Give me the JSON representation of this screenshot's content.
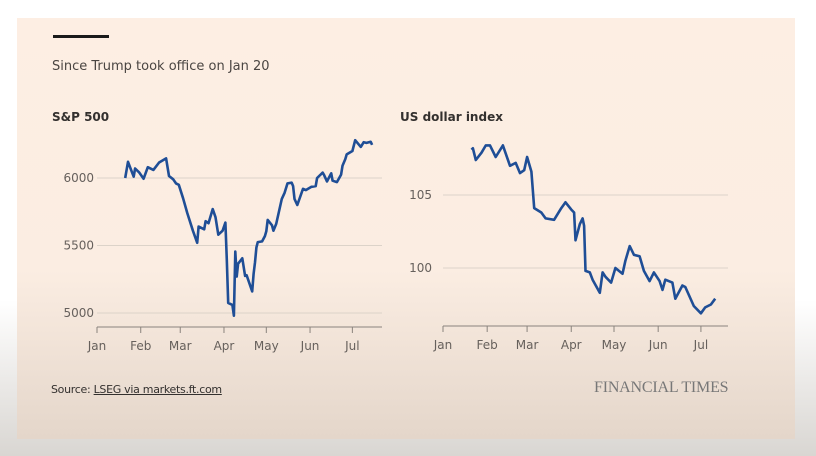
{
  "subtitle": "Since Trump took office on Jan 20",
  "source_label": "Source: ",
  "source_link": "LSEG via markets.ft.com",
  "brand": "FINANCIAL TIMES",
  "colors": {
    "line": "#1f4e96",
    "grid": "#dcd3c9",
    "background": "#fdeee3"
  },
  "chart_data": [
    {
      "type": "line",
      "title": "S&P 500",
      "xlabel": "",
      "ylabel": "",
      "x_ticks": [
        "Jan",
        "Feb",
        "Mar",
        "Apr",
        "May",
        "Jun",
        "Jul"
      ],
      "y_ticks": [
        5000,
        5500,
        6000
      ],
      "ylim": [
        4900,
        6300
      ],
      "xlim": [
        "2025-01-01",
        "2025-07-22"
      ],
      "grid": true,
      "x": [
        "2025-01-21",
        "2025-01-23",
        "2025-01-27",
        "2025-01-28",
        "2025-01-31",
        "2025-02-03",
        "2025-02-06",
        "2025-02-10",
        "2025-02-14",
        "2025-02-19",
        "2025-02-21",
        "2025-02-24",
        "2025-02-26",
        "2025-02-28",
        "2025-03-03",
        "2025-03-06",
        "2025-03-10",
        "2025-03-13",
        "2025-03-14",
        "2025-03-18",
        "2025-03-19",
        "2025-03-21",
        "2025-03-24",
        "2025-03-26",
        "2025-03-28",
        "2025-03-31",
        "2025-04-02",
        "2025-04-03",
        "2025-04-04",
        "2025-04-07",
        "2025-04-08",
        "2025-04-09",
        "2025-04-10",
        "2025-04-11",
        "2025-04-14",
        "2025-04-16",
        "2025-04-17",
        "2025-04-21",
        "2025-04-22",
        "2025-04-23",
        "2025-04-24",
        "2025-04-25",
        "2025-04-28",
        "2025-04-30",
        "2025-05-01",
        "2025-05-02",
        "2025-05-05",
        "2025-05-06",
        "2025-05-08",
        "2025-05-12",
        "2025-05-14",
        "2025-05-16",
        "2025-05-19",
        "2025-05-20",
        "2025-05-21",
        "2025-05-23",
        "2025-05-27",
        "2025-05-29",
        "2025-06-02",
        "2025-06-05",
        "2025-06-06",
        "2025-06-10",
        "2025-06-11",
        "2025-06-13",
        "2025-06-16",
        "2025-06-17",
        "2025-06-20",
        "2025-06-23",
        "2025-06-24",
        "2025-06-26",
        "2025-06-27",
        "2025-07-01",
        "2025-07-03",
        "2025-07-07",
        "2025-07-09",
        "2025-07-11",
        "2025-07-14",
        "2025-07-15"
      ],
      "values": [
        6000,
        6120,
        6010,
        6070,
        6040,
        5995,
        6080,
        6060,
        6115,
        6145,
        6015,
        5990,
        5960,
        5950,
        5850,
        5740,
        5610,
        5520,
        5640,
        5620,
        5680,
        5665,
        5770,
        5710,
        5580,
        5610,
        5670,
        5395,
        5075,
        5060,
        4980,
        5455,
        5270,
        5365,
        5405,
        5275,
        5280,
        5160,
        5290,
        5375,
        5485,
        5525,
        5530,
        5570,
        5605,
        5690,
        5650,
        5610,
        5660,
        5845,
        5890,
        5960,
        5965,
        5940,
        5845,
        5800,
        5920,
        5910,
        5935,
        5940,
        6000,
        6040,
        6020,
        5975,
        6035,
        5980,
        5970,
        6025,
        6090,
        6140,
        6175,
        6200,
        6280,
        6230,
        6265,
        6260,
        6268,
        6245
      ]
    },
    {
      "type": "line",
      "title": "US dollar index",
      "xlabel": "",
      "ylabel": "",
      "x_ticks": [
        "Jan",
        "Feb",
        "Mar",
        "Apr",
        "May",
        "Jun",
        "Jul"
      ],
      "y_ticks": [
        100,
        105
      ],
      "ylim": [
        96,
        109
      ],
      "xlim": [
        "2025-01-01",
        "2025-07-20"
      ],
      "grid": true,
      "x": [
        "2025-01-21",
        "2025-01-22",
        "2025-01-24",
        "2025-01-28",
        "2025-01-31",
        "2025-02-03",
        "2025-02-07",
        "2025-02-12",
        "2025-02-17",
        "2025-02-21",
        "2025-02-24",
        "2025-02-27",
        "2025-03-01",
        "2025-03-04",
        "2025-03-06",
        "2025-03-11",
        "2025-03-14",
        "2025-03-20",
        "2025-03-25",
        "2025-03-28",
        "2025-04-01",
        "2025-04-03",
        "2025-04-04",
        "2025-04-07",
        "2025-04-09",
        "2025-04-10",
        "2025-04-11",
        "2025-04-14",
        "2025-04-16",
        "2025-04-21",
        "2025-04-23",
        "2025-04-25",
        "2025-04-29",
        "2025-05-02",
        "2025-05-07",
        "2025-05-09",
        "2025-05-12",
        "2025-05-15",
        "2025-05-19",
        "2025-05-22",
        "2025-05-26",
        "2025-05-29",
        "2025-06-02",
        "2025-06-04",
        "2025-06-06",
        "2025-06-11",
        "2025-06-13",
        "2025-06-18",
        "2025-06-20",
        "2025-06-26",
        "2025-07-01",
        "2025-07-04",
        "2025-07-08",
        "2025-07-11"
      ],
      "values": [
        108.1,
        108.2,
        107.4,
        107.9,
        108.4,
        108.4,
        107.6,
        108.4,
        107.0,
        107.2,
        106.5,
        106.7,
        107.6,
        106.6,
        104.1,
        103.8,
        103.4,
        103.3,
        104.1,
        104.5,
        104.0,
        103.8,
        101.9,
        103.0,
        103.4,
        102.9,
        99.8,
        99.7,
        99.2,
        98.3,
        99.7,
        99.4,
        99.0,
        100.0,
        99.6,
        100.5,
        101.5,
        100.9,
        100.8,
        99.8,
        99.1,
        99.7,
        99.1,
        98.5,
        99.2,
        99.0,
        97.9,
        98.8,
        98.7,
        97.4,
        96.9,
        97.3,
        97.5,
        97.9
      ]
    }
  ]
}
